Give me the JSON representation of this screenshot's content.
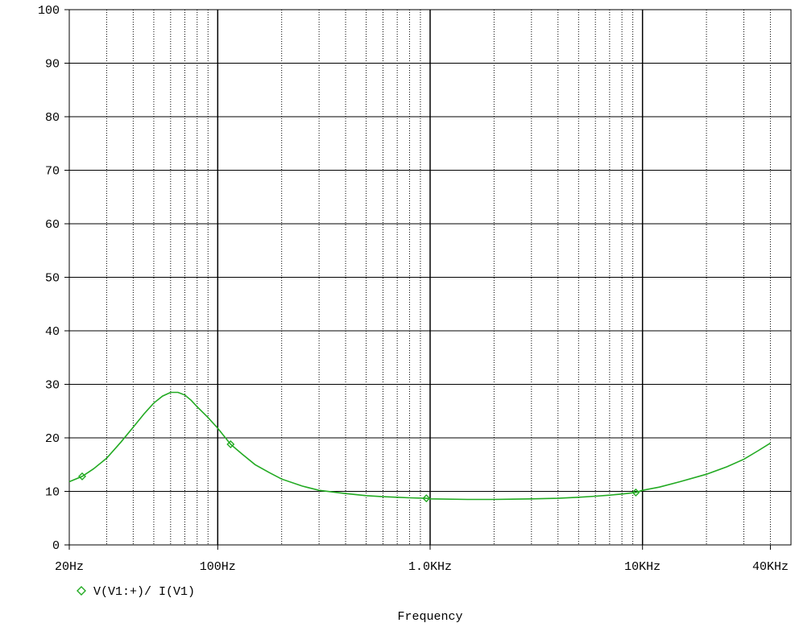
{
  "chart_data": {
    "type": "line",
    "xscale": "log",
    "xlim": [
      20,
      50000
    ],
    "ylim": [
      0,
      100
    ],
    "xlabel": "Frequency",
    "ylabel": "",
    "x_ticks": [
      {
        "value": 20,
        "label": "20Hz"
      },
      {
        "value": 100,
        "label": "100Hz"
      },
      {
        "value": 1000,
        "label": "1.0KHz"
      },
      {
        "value": 10000,
        "label": "10KHz"
      },
      {
        "value": 40000,
        "label": "40KHz"
      }
    ],
    "y_ticks": [
      {
        "value": 0,
        "label": "0"
      },
      {
        "value": 10,
        "label": "10"
      },
      {
        "value": 20,
        "label": "20"
      },
      {
        "value": 30,
        "label": "30"
      },
      {
        "value": 40,
        "label": "40"
      },
      {
        "value": 50,
        "label": "50"
      },
      {
        "value": 60,
        "label": "60"
      },
      {
        "value": 70,
        "label": "70"
      },
      {
        "value": 80,
        "label": "80"
      },
      {
        "value": 90,
        "label": "90"
      },
      {
        "value": 100,
        "label": "100"
      }
    ],
    "grid": true,
    "legend_position": "bottom-left",
    "series": [
      {
        "name": "V(V1:+)/ I(V1)",
        "color": "#22aa22",
        "marker": "diamond",
        "markers_x": [
          23,
          115,
          960,
          9300
        ],
        "x": [
          20,
          23,
          26,
          30,
          35,
          40,
          45,
          50,
          55,
          60,
          65,
          70,
          75,
          80,
          90,
          100,
          115,
          130,
          150,
          175,
          200,
          250,
          300,
          400,
          500,
          600,
          700,
          800,
          960,
          1000,
          1500,
          2000,
          3000,
          4000,
          5000,
          6000,
          7000,
          8000,
          9300,
          10000,
          12000,
          15000,
          20000,
          25000,
          30000,
          35000,
          40000
        ],
        "y": [
          11.8,
          12.8,
          14.2,
          16.2,
          19.2,
          22.0,
          24.5,
          26.5,
          27.8,
          28.5,
          28.5,
          28.0,
          27.0,
          25.8,
          23.8,
          21.8,
          18.8,
          17.0,
          15.0,
          13.5,
          12.3,
          11.0,
          10.2,
          9.6,
          9.2,
          9.0,
          8.9,
          8.8,
          8.7,
          8.6,
          8.5,
          8.5,
          8.6,
          8.7,
          8.9,
          9.1,
          9.3,
          9.5,
          9.8,
          10.2,
          10.8,
          11.8,
          13.2,
          14.6,
          16.0,
          17.6,
          19.0
        ]
      }
    ]
  }
}
